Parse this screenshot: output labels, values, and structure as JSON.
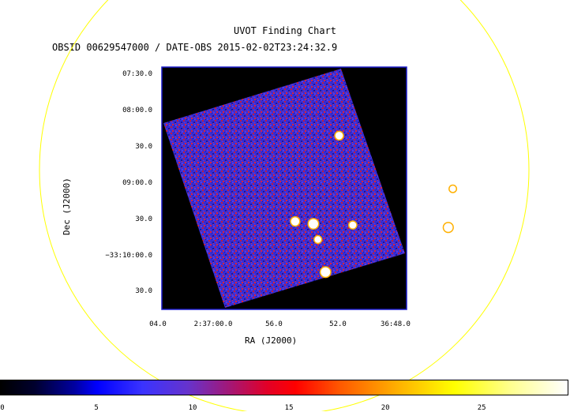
{
  "title": "UVOT Finding Chart",
  "subtitle": "OBSID 00629547000 / DATE-OBS 2015-02-02T23:24:32.9",
  "xlabel": "RA (J2000)",
  "ylabel": "Dec (J2000)",
  "ra_ticks": [
    "04.0",
    "2:37:00.0",
    "56.0",
    "52.0",
    "36:48.0"
  ],
  "dec_ticks": [
    "07:30.0",
    "08:00.0",
    "30.0",
    "09:00.0",
    "30.0",
    "−33:10:00.0",
    "30.0"
  ],
  "colorbar": {
    "ticks": [
      "0",
      "5",
      "10",
      "15",
      "20",
      "25"
    ],
    "min": 0,
    "max": 29.5
  },
  "colors": {
    "circle": "#ffff00",
    "frame": "#1c1ccc",
    "field_background": "#000000",
    "sky_base": "#3a2fd4"
  },
  "sources": [
    {
      "ra_offset_s": -4.3,
      "dec_offset_arcsec": 70,
      "brightness": 0.7
    },
    {
      "ra_offset_s": -11.8,
      "dec_offset_arcsec": 26,
      "brightness": 0.5
    },
    {
      "ra_offset_s": -11.5,
      "dec_offset_arcsec": -6,
      "brightness": 0.9
    },
    {
      "ra_offset_s": -5.2,
      "dec_offset_arcsec": -4,
      "brightness": 0.6
    },
    {
      "ra_offset_s": -2.6,
      "dec_offset_arcsec": -3,
      "brightness": 1.0
    },
    {
      "ra_offset_s": -1.4,
      "dec_offset_arcsec": -1,
      "brightness": 0.8
    },
    {
      "ra_offset_s": -2.9,
      "dec_offset_arcsec": -16,
      "brightness": 0.55
    },
    {
      "ra_offset_s": -3.4,
      "dec_offset_arcsec": -43,
      "brightness": 1.0
    }
  ]
}
